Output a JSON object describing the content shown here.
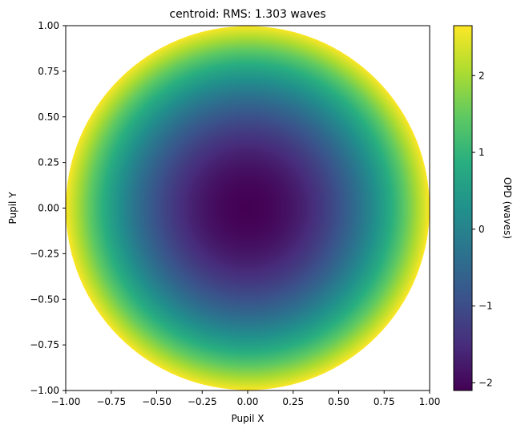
{
  "chart_data": {
    "type": "heatmap",
    "title": "centroid: RMS: 1.303 waves",
    "xlabel": "Pupil X",
    "ylabel": "Pupil Y",
    "xlim": [
      -1.0,
      1.0
    ],
    "ylim": [
      -1.0,
      1.0
    ],
    "x_ticks": [
      -1.0,
      -0.75,
      -0.5,
      -0.25,
      0.0,
      0.25,
      0.5,
      0.75,
      1.0
    ],
    "x_tick_labels": [
      "−1.00",
      "−0.75",
      "−0.50",
      "−0.25",
      "0.00",
      "0.25",
      "0.50",
      "0.75",
      "1.00"
    ],
    "y_ticks": [
      1.0,
      0.75,
      0.5,
      0.25,
      0.0,
      -0.25,
      -0.5,
      -0.75,
      -1.0
    ],
    "y_tick_labels": [
      "1.00",
      "0.75",
      "0.50",
      "0.25",
      "0.00",
      "−0.25",
      "−0.50",
      "−0.75",
      "−1.00"
    ],
    "aperture": "circle",
    "aperture_radius": 1.0,
    "opd_model": "defocus",
    "opd_center": -2.1,
    "opd_edge": 2.65,
    "grid": false,
    "colormap": "viridis",
    "colorbar": {
      "label": "OPD (waves)",
      "range": [
        -2.1,
        2.65
      ],
      "ticks": [
        2,
        1,
        0,
        -1,
        -2
      ],
      "tick_labels": [
        "2",
        "1",
        "0",
        "−1",
        "−2"
      ]
    }
  }
}
